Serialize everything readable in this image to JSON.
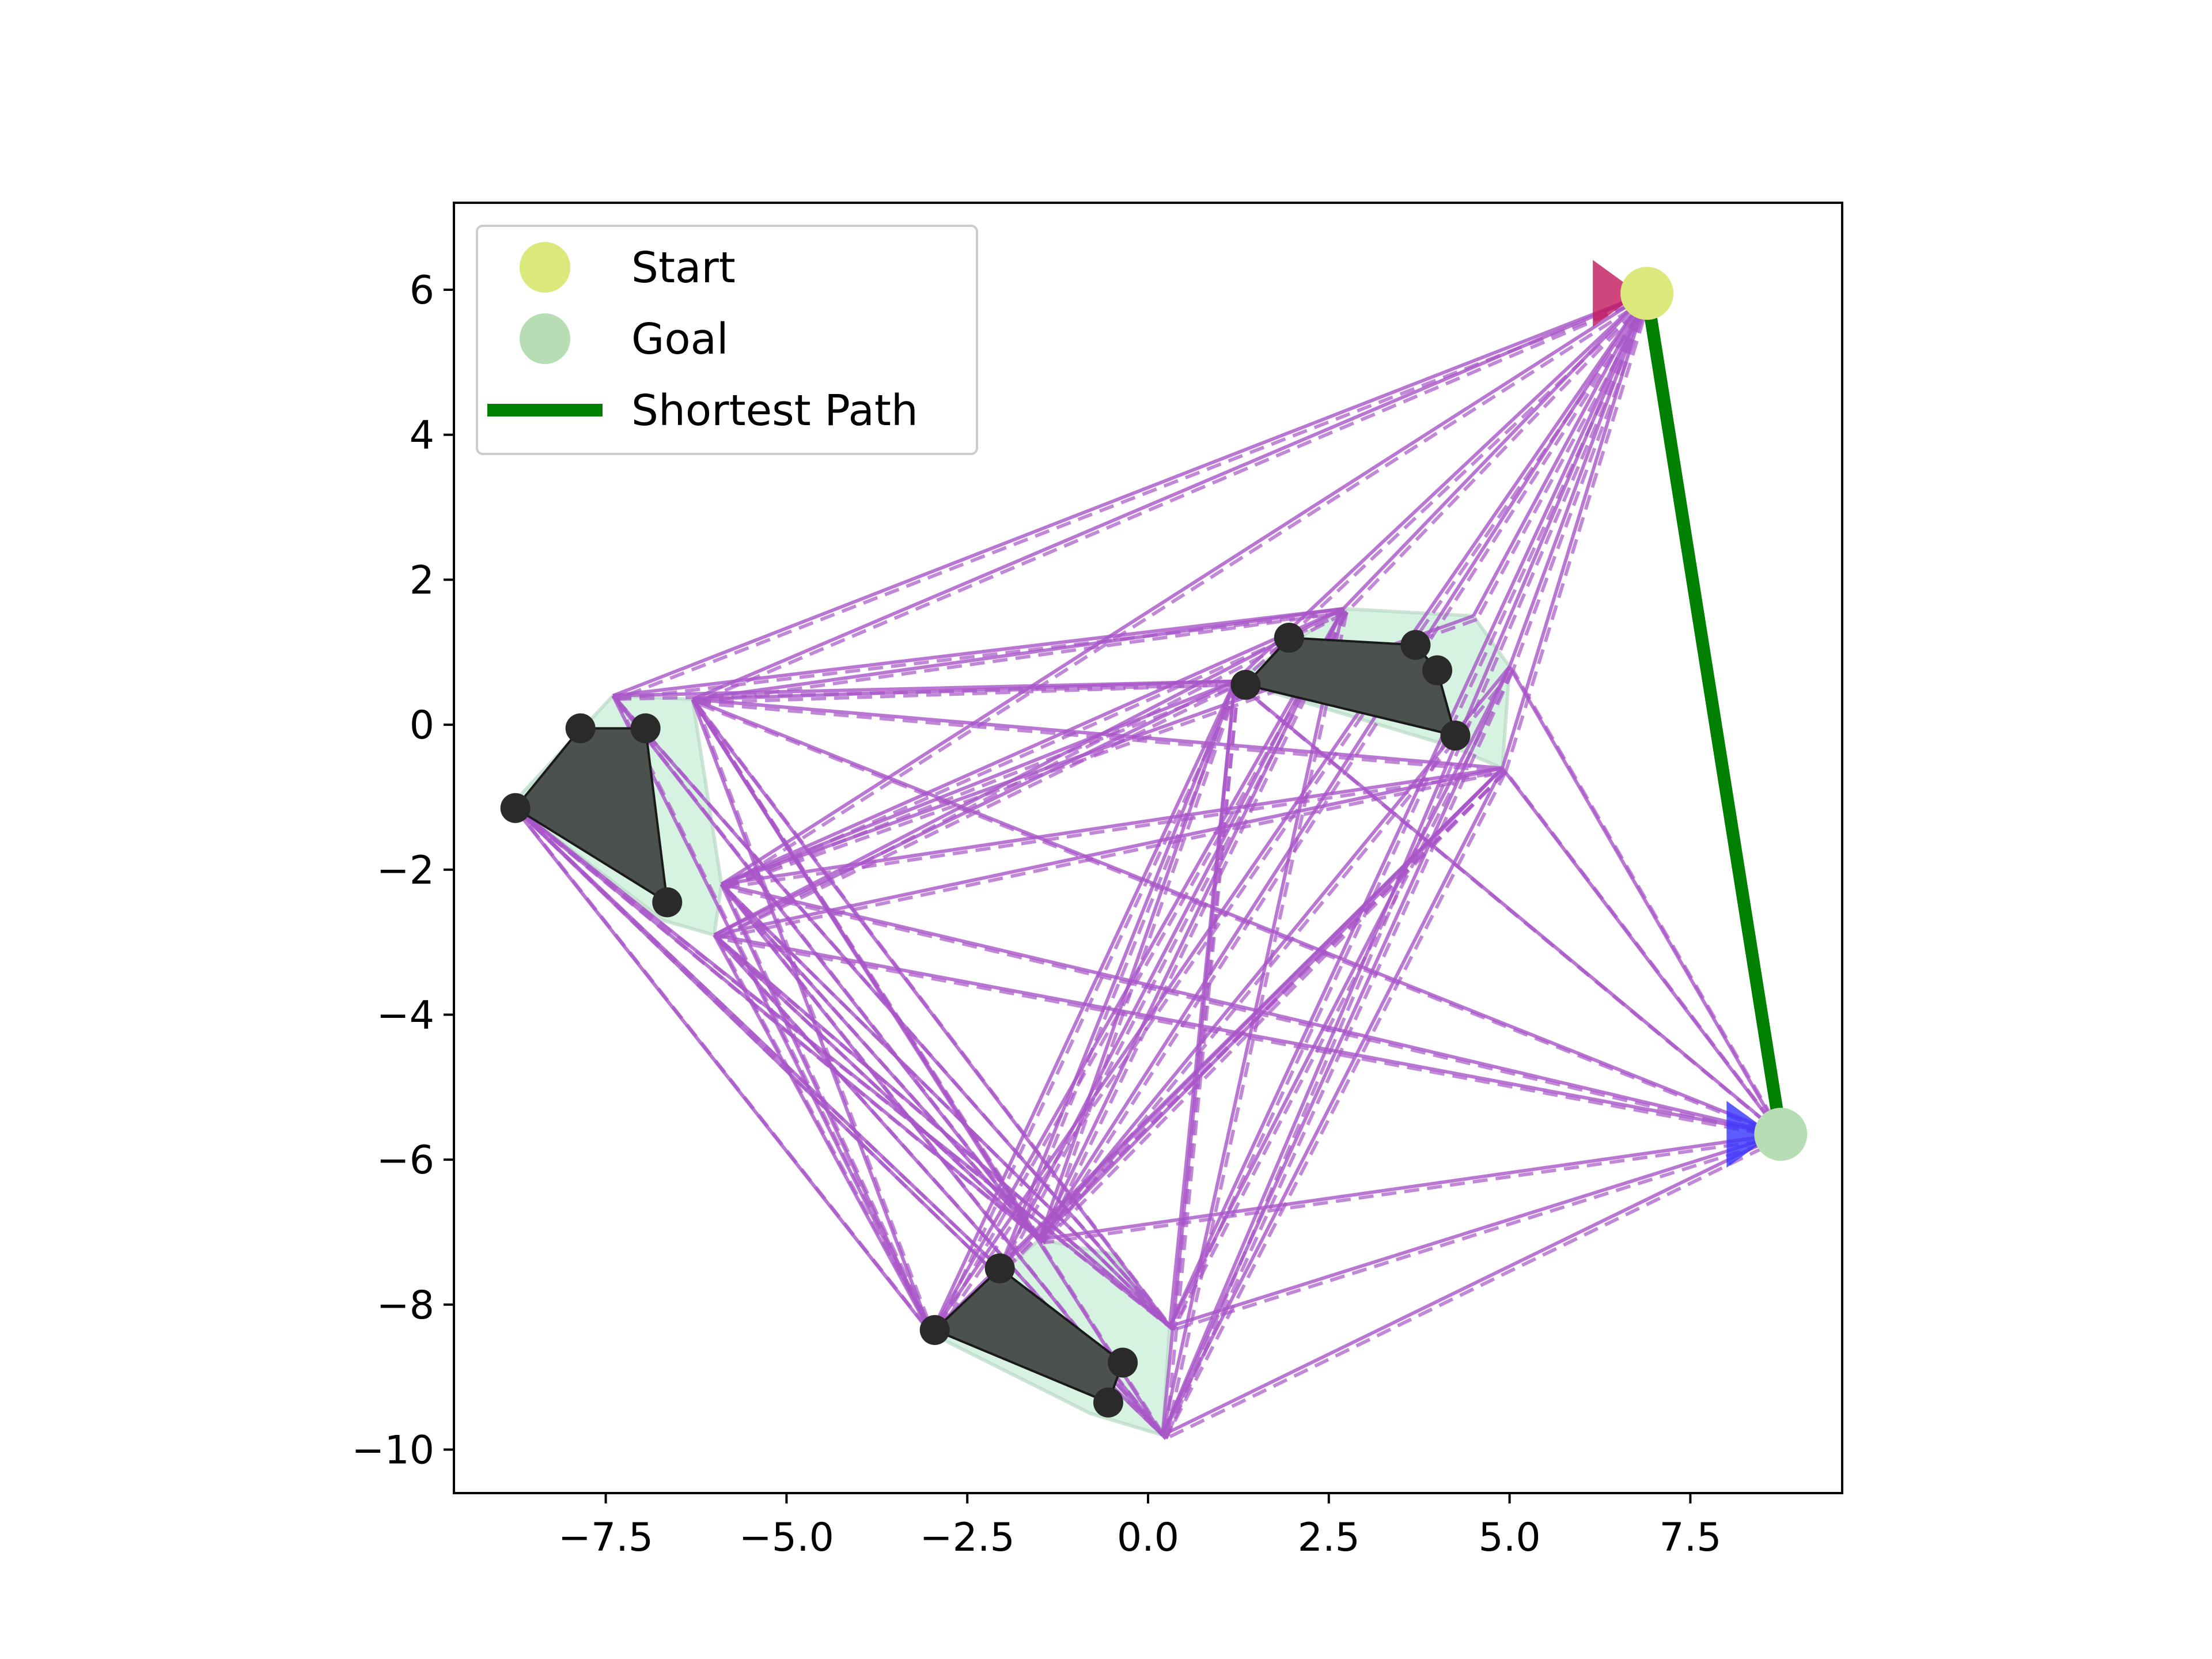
{
  "chart_data": {
    "type": "scatter",
    "title": "",
    "xlabel": "",
    "ylabel": "",
    "xlim": [
      -9.6,
      9.6
    ],
    "ylim": [
      -10.6,
      7.2
    ],
    "xticks": [
      -7.5,
      -5.0,
      -2.5,
      0.0,
      2.5,
      5.0,
      7.5
    ],
    "xtick_labels": [
      "−7.5",
      "−5.0",
      "−2.5",
      "0.0",
      "2.5",
      "5.0",
      "7.5"
    ],
    "yticks": [
      -10,
      -8,
      -6,
      -4,
      -2,
      0,
      2,
      4,
      6
    ],
    "ytick_labels": [
      "−10",
      "−8",
      "−6",
      "−4",
      "−2",
      "0",
      "2",
      "4",
      "6"
    ],
    "grid": false,
    "legend": {
      "placement": "upper-left",
      "entries": [
        {
          "label": "Start",
          "color": "#dbe87c",
          "kind": "marker"
        },
        {
          "label": "Goal",
          "color": "#b6ddb3",
          "kind": "marker"
        },
        {
          "label": "Shortest Path",
          "color": "#008000",
          "kind": "line"
        }
      ]
    },
    "colors": {
      "edges": "#a855c8",
      "obstacle_fill": "#4b514c",
      "obstacle_vertex": "#2a2a2a",
      "inflated_region": "#d6f2e0",
      "start": "#dbe87c",
      "goal": "#b6ddb3",
      "start_heading": "#c2185b",
      "goal_heading": "#3333ff",
      "path": "#008000"
    },
    "start": {
      "x": 6.9,
      "y": 5.95
    },
    "goal": {
      "x": 8.75,
      "y": -5.65
    },
    "shortest_path": [
      [
        6.9,
        5.95
      ],
      [
        8.75,
        -5.65
      ]
    ],
    "obstacles": [
      {
        "name": "left",
        "vertices": [
          [
            -8.75,
            -1.15
          ],
          [
            -7.85,
            -0.05
          ],
          [
            -6.95,
            -0.05
          ],
          [
            -6.65,
            -2.45
          ]
        ]
      },
      {
        "name": "upper-right",
        "vertices": [
          [
            1.35,
            0.55
          ],
          [
            1.95,
            1.2
          ],
          [
            3.7,
            1.1
          ],
          [
            4.0,
            0.75
          ],
          [
            4.25,
            -0.15
          ]
        ]
      },
      {
        "name": "bottom",
        "vertices": [
          [
            -2.95,
            -8.35
          ],
          [
            -2.05,
            -7.5
          ],
          [
            -0.35,
            -8.8
          ],
          [
            -0.55,
            -9.35
          ]
        ]
      }
    ],
    "inflated_regions": [
      {
        "name": "left",
        "vertices": [
          [
            -8.8,
            -1.1
          ],
          [
            -7.4,
            0.4
          ],
          [
            -6.3,
            0.35
          ],
          [
            -5.9,
            -2.2
          ],
          [
            -6.0,
            -2.9
          ],
          [
            -6.7,
            -2.7
          ]
        ]
      },
      {
        "name": "upper-right",
        "vertices": [
          [
            1.2,
            0.6
          ],
          [
            2.7,
            1.6
          ],
          [
            4.5,
            1.5
          ],
          [
            5.0,
            0.8
          ],
          [
            4.9,
            -0.6
          ],
          [
            4.2,
            -0.3
          ]
        ]
      },
      {
        "name": "bottom",
        "vertices": [
          [
            -3.0,
            -8.4
          ],
          [
            -1.5,
            -7.1
          ],
          [
            -0.5,
            -7.3
          ],
          [
            0.3,
            -8.3
          ],
          [
            0.2,
            -9.8
          ],
          [
            -0.8,
            -9.5
          ]
        ]
      }
    ],
    "visibility_nodes": [
      [
        6.9,
        5.95
      ],
      [
        8.75,
        -5.65
      ],
      [
        -7.4,
        0.4
      ],
      [
        -6.3,
        0.35
      ],
      [
        -5.9,
        -2.2
      ],
      [
        -6.0,
        -2.9
      ],
      [
        -8.8,
        -1.1
      ],
      [
        2.7,
        1.6
      ],
      [
        4.5,
        1.5
      ],
      [
        5.0,
        0.8
      ],
      [
        4.9,
        -0.6
      ],
      [
        1.2,
        0.6
      ],
      [
        -3.0,
        -8.4
      ],
      [
        -1.5,
        -7.1
      ],
      [
        0.3,
        -8.3
      ],
      [
        0.2,
        -9.8
      ],
      [
        -2.05,
        -7.5
      ]
    ],
    "visibility_edges": [
      [
        0,
        2
      ],
      [
        0,
        3
      ],
      [
        0,
        4
      ],
      [
        0,
        7
      ],
      [
        0,
        8
      ],
      [
        0,
        9
      ],
      [
        0,
        10
      ],
      [
        0,
        11
      ],
      [
        0,
        12
      ],
      [
        0,
        13
      ],
      [
        0,
        14
      ],
      [
        0,
        15
      ],
      [
        1,
        3
      ],
      [
        1,
        4
      ],
      [
        1,
        5
      ],
      [
        1,
        9
      ],
      [
        1,
        10
      ],
      [
        1,
        11
      ],
      [
        1,
        13
      ],
      [
        1,
        14
      ],
      [
        1,
        15
      ],
      [
        2,
        7
      ],
      [
        2,
        11
      ],
      [
        2,
        12
      ],
      [
        2,
        13
      ],
      [
        2,
        14
      ],
      [
        3,
        7
      ],
      [
        3,
        10
      ],
      [
        3,
        11
      ],
      [
        3,
        12
      ],
      [
        3,
        13
      ],
      [
        3,
        14
      ],
      [
        3,
        15
      ],
      [
        4,
        7
      ],
      [
        4,
        8
      ],
      [
        4,
        10
      ],
      [
        4,
        11
      ],
      [
        4,
        12
      ],
      [
        4,
        13
      ],
      [
        4,
        14
      ],
      [
        4,
        15
      ],
      [
        5,
        7
      ],
      [
        5,
        10
      ],
      [
        5,
        11
      ],
      [
        5,
        12
      ],
      [
        5,
        13
      ],
      [
        5,
        14
      ],
      [
        5,
        15
      ],
      [
        6,
        12
      ],
      [
        6,
        13
      ],
      [
        6,
        14
      ],
      [
        6,
        15
      ],
      [
        6,
        16
      ],
      [
        7,
        12
      ],
      [
        7,
        13
      ],
      [
        7,
        15
      ],
      [
        7,
        16
      ],
      [
        9,
        13
      ],
      [
        9,
        14
      ],
      [
        9,
        15
      ],
      [
        10,
        12
      ],
      [
        10,
        13
      ],
      [
        10,
        15
      ],
      [
        10,
        16
      ],
      [
        11,
        12
      ],
      [
        11,
        13
      ],
      [
        11,
        14
      ],
      [
        11,
        15
      ],
      [
        11,
        16
      ]
    ]
  }
}
